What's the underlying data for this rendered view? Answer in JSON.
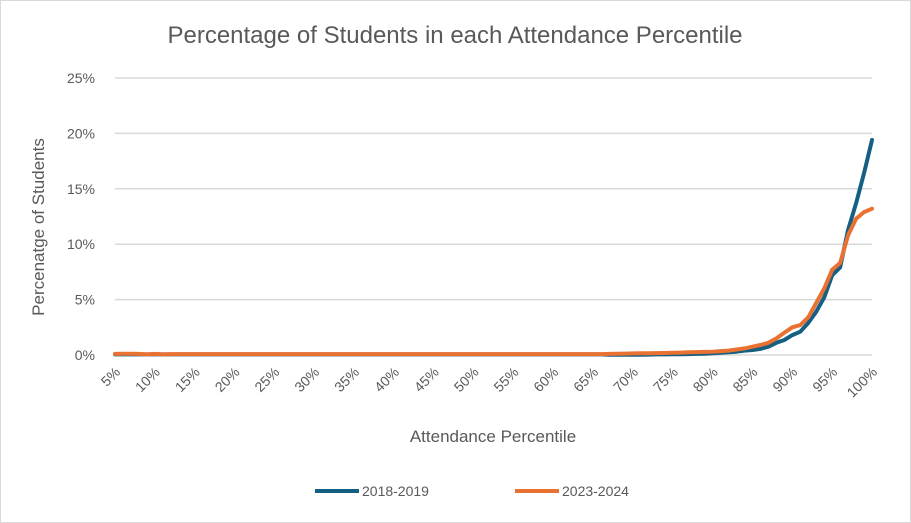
{
  "chart_data": {
    "type": "line",
    "title": "Percentage of Students in each Attendance Percentile",
    "xlabel": "Attendance Percentile",
    "ylabel": "Percenatge of Students",
    "ylim": [
      0,
      25
    ],
    "yticks": [
      "0%",
      "5%",
      "10%",
      "15%",
      "20%",
      "25%"
    ],
    "xticks": [
      "5%",
      "10%",
      "15%",
      "20%",
      "25%",
      "30%",
      "35%",
      "40%",
      "45%",
      "50%",
      "55%",
      "60%",
      "65%",
      "70%",
      "75%",
      "80%",
      "85%",
      "90%",
      "95%",
      "100%"
    ],
    "grid": true,
    "legend_position": "bottom",
    "x": [
      5,
      6,
      7,
      8,
      9,
      10,
      11,
      12,
      13,
      14,
      15,
      16,
      17,
      18,
      19,
      20,
      21,
      22,
      23,
      24,
      25,
      26,
      27,
      28,
      29,
      30,
      31,
      32,
      33,
      34,
      35,
      36,
      37,
      38,
      39,
      40,
      41,
      42,
      43,
      44,
      45,
      46,
      47,
      48,
      49,
      50,
      51,
      52,
      53,
      54,
      55,
      56,
      57,
      58,
      59,
      60,
      61,
      62,
      63,
      64,
      65,
      66,
      67,
      68,
      69,
      70,
      71,
      72,
      73,
      74,
      75,
      76,
      77,
      78,
      79,
      80,
      81,
      82,
      83,
      84,
      85,
      86,
      87,
      88,
      89,
      90,
      91,
      92,
      93,
      94,
      95,
      96,
      97,
      98,
      99,
      100
    ],
    "series": [
      {
        "name": "2018-2019",
        "color": "#156082",
        "values": [
          0.05,
          0.05,
          0.05,
          0.05,
          0.05,
          0.05,
          0.05,
          0.05,
          0.05,
          0.05,
          0.05,
          0.05,
          0.05,
          0.05,
          0.05,
          0.05,
          0.05,
          0.05,
          0.05,
          0.05,
          0.05,
          0.05,
          0.05,
          0.05,
          0.05,
          0.05,
          0.05,
          0.05,
          0.05,
          0.05,
          0.05,
          0.05,
          0.05,
          0.05,
          0.05,
          0.05,
          0.05,
          0.05,
          0.05,
          0.05,
          0.05,
          0.05,
          0.05,
          0.05,
          0.05,
          0.05,
          0.05,
          0.05,
          0.05,
          0.05,
          0.05,
          0.05,
          0.05,
          0.05,
          0.05,
          0.05,
          0.05,
          0.05,
          0.05,
          0.05,
          0.05,
          0.05,
          0.03,
          0.03,
          0.03,
          0.03,
          0.03,
          0.04,
          0.05,
          0.05,
          0.06,
          0.07,
          0.08,
          0.1,
          0.12,
          0.15,
          0.2,
          0.25,
          0.3,
          0.4,
          0.45,
          0.55,
          0.75,
          1.1,
          1.35,
          1.8,
          2.1,
          2.9,
          3.9,
          5.2,
          7.2,
          7.9,
          11.3,
          13.7,
          16.4,
          19.4
        ]
      },
      {
        "name": "2023-2024",
        "color": "#E97132",
        "values": [
          0.1,
          0.12,
          0.12,
          0.1,
          0.05,
          0.1,
          0.05,
          0.08,
          0.08,
          0.08,
          0.08,
          0.08,
          0.08,
          0.08,
          0.08,
          0.08,
          0.08,
          0.08,
          0.08,
          0.08,
          0.08,
          0.08,
          0.08,
          0.08,
          0.08,
          0.08,
          0.08,
          0.08,
          0.08,
          0.08,
          0.08,
          0.08,
          0.08,
          0.08,
          0.08,
          0.08,
          0.08,
          0.08,
          0.08,
          0.08,
          0.08,
          0.08,
          0.08,
          0.08,
          0.08,
          0.08,
          0.08,
          0.08,
          0.08,
          0.08,
          0.08,
          0.08,
          0.08,
          0.08,
          0.08,
          0.08,
          0.08,
          0.08,
          0.08,
          0.08,
          0.08,
          0.08,
          0.1,
          0.12,
          0.13,
          0.14,
          0.15,
          0.16,
          0.17,
          0.18,
          0.2,
          0.22,
          0.24,
          0.26,
          0.28,
          0.3,
          0.35,
          0.4,
          0.5,
          0.6,
          0.75,
          0.9,
          1.1,
          1.5,
          2.0,
          2.5,
          2.7,
          3.4,
          4.7,
          6.0,
          7.7,
          8.3,
          10.8,
          12.3,
          12.9,
          13.2
        ]
      }
    ]
  }
}
